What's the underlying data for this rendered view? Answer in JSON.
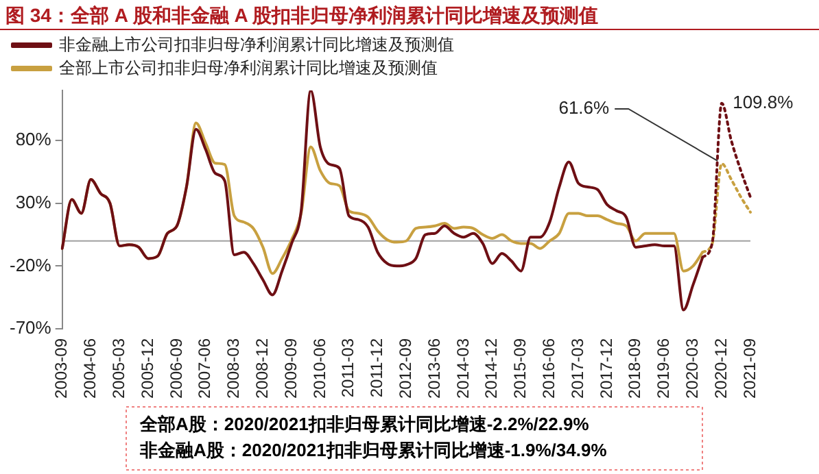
{
  "chart_data": {
    "type": "line",
    "title": "图 34：全部 A 股和非金融 A 股扣非归母净利润累计同比增速及预测值",
    "categories": [
      "2003-09",
      null,
      null,
      "2004-06",
      null,
      null,
      "2005-03",
      null,
      null,
      "2005-12",
      null,
      null,
      "2006-09",
      null,
      null,
      "2007-06",
      null,
      null,
      "2008-03",
      null,
      null,
      "2008-12",
      null,
      null,
      "2009-09",
      null,
      null,
      "2010-06",
      null,
      null,
      "2011-03",
      null,
      null,
      "2011-12",
      null,
      null,
      "2012-09",
      null,
      null,
      "2013-06",
      null,
      null,
      "2014-03",
      null,
      null,
      "2014-12",
      null,
      null,
      "2015-09",
      null,
      null,
      "2016-06",
      null,
      null,
      "2017-03",
      null,
      null,
      "2017-12",
      null,
      null,
      "2018-09",
      null,
      null,
      "2019-06",
      null,
      null,
      "2020-03",
      null,
      null,
      "2020-12",
      null,
      null,
      "2021-09"
    ],
    "series": [
      {
        "name": "非金融上市公司扣非归母净利润累计同比增速及预测值",
        "color": "#6e0f14",
        "values": [
          -6,
          33,
          22,
          49,
          38,
          30,
          -4,
          -3,
          -5,
          -14,
          -12,
          6,
          12,
          43,
          89,
          73,
          54,
          48,
          -11,
          -9,
          -18,
          -31,
          -43,
          -24,
          -2,
          24,
          120,
          75,
          61,
          58,
          20,
          17,
          11,
          -9,
          -18,
          -20,
          -19,
          -14,
          5,
          6,
          12,
          6,
          3,
          6,
          -2,
          -18,
          -10,
          -16,
          -24,
          3,
          3,
          15,
          43,
          63,
          46,
          43,
          41,
          29,
          24,
          19,
          -5,
          -4,
          -3,
          -4,
          -4,
          -55,
          -35,
          -13,
          null,
          null,
          null,
          null,
          null
        ]
      },
      {
        "name": "全部上市公司扣非归母净利润累计同比增速及预测值",
        "color": "#c8a040",
        "values": [
          -6,
          33,
          22,
          49,
          38,
          30,
          -4,
          -3,
          -5,
          -14,
          -12,
          6,
          12,
          43,
          94,
          78,
          62,
          61,
          20,
          15,
          10,
          -5,
          -26,
          -14,
          1,
          22,
          75,
          56,
          46,
          44,
          24,
          22,
          19,
          8,
          1,
          -1,
          0,
          10,
          11,
          12,
          14,
          10,
          11,
          10,
          5,
          2,
          5,
          0,
          -2,
          -2,
          -6,
          0,
          6,
          22,
          22,
          20,
          20,
          17,
          14,
          12,
          0,
          6,
          6,
          6,
          6,
          -24,
          -20,
          -9,
          null,
          null,
          null,
          null,
          null
        ]
      },
      {
        "color": "#6e0f14",
        "line_style": "dotted",
        "values": [
          null,
          null,
          null,
          null,
          null,
          null,
          null,
          null,
          null,
          null,
          null,
          null,
          null,
          null,
          null,
          null,
          null,
          null,
          null,
          null,
          null,
          null,
          null,
          null,
          null,
          null,
          null,
          null,
          null,
          null,
          null,
          null,
          null,
          null,
          null,
          null,
          null,
          null,
          null,
          null,
          null,
          null,
          null,
          null,
          null,
          null,
          null,
          null,
          null,
          null,
          null,
          null,
          null,
          null,
          null,
          null,
          null,
          null,
          null,
          null,
          null,
          null,
          null,
          null,
          null,
          null,
          null,
          -13,
          -1.9,
          109.8,
          80,
          56,
          34.9
        ]
      },
      {
        "color": "#c8a040",
        "line_style": "dotted",
        "values": [
          null,
          null,
          null,
          null,
          null,
          null,
          null,
          null,
          null,
          null,
          null,
          null,
          null,
          null,
          null,
          null,
          null,
          null,
          null,
          null,
          null,
          null,
          null,
          null,
          null,
          null,
          null,
          null,
          null,
          null,
          null,
          null,
          null,
          null,
          null,
          null,
          null,
          null,
          null,
          null,
          null,
          null,
          null,
          null,
          null,
          null,
          null,
          null,
          null,
          null,
          null,
          null,
          null,
          null,
          null,
          null,
          null,
          null,
          null,
          null,
          null,
          null,
          null,
          null,
          null,
          null,
          null,
          -9,
          -2.2,
          61.6,
          49,
          35,
          22.9
        ]
      }
    ],
    "ylim": [
      -70,
      120
    ],
    "yticks": [
      {
        "value": -70,
        "label": "-70%"
      },
      {
        "value": -20,
        "label": "-20%"
      },
      {
        "value": 30,
        "label": "30%"
      },
      {
        "value": 80,
        "label": "80%"
      }
    ],
    "ref_lines": [
      {
        "axis": "y",
        "value": 0,
        "color": "#a0a0a0"
      }
    ],
    "legend": "top left",
    "annotations": [
      {
        "text": "109.8%",
        "x": "2020-12",
        "y": 109.8
      },
      {
        "text": "61.6%",
        "x": "2020-12",
        "y": 61.6
      },
      "全部A股：2020/2021扣非归母累计同比增速-2.2%/22.9%",
      "非金融A股：2020/2021扣非归母累计同比增速-1.9%/34.9%"
    ]
  }
}
